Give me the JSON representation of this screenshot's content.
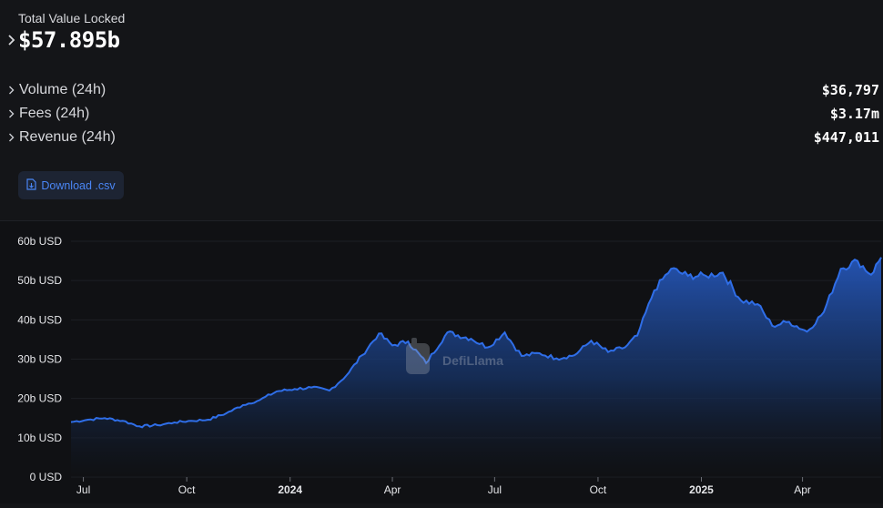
{
  "summary": {
    "tvl_label": "Total Value Locked",
    "tvl_value": "$57.895b",
    "metrics": [
      {
        "label": "Volume (24h)",
        "value": "$36,797"
      },
      {
        "label": "Fees (24h)",
        "value": "$3.17m"
      },
      {
        "label": "Revenue (24h)",
        "value": "$447,011"
      }
    ]
  },
  "download_button": {
    "label": "Download .csv",
    "icon": "file-download-icon"
  },
  "watermark": {
    "text": "DefiLlama",
    "icon": "llama-logo-icon"
  },
  "colors": {
    "line": "#2f6ee8",
    "accent": "#4a86f5"
  },
  "chart_data": {
    "type": "area",
    "title": "",
    "xlabel": "",
    "ylabel": "",
    "ylim": [
      0,
      60
    ],
    "y_ticks": [
      "0 USD",
      "10b USD",
      "20b USD",
      "30b USD",
      "40b USD",
      "50b USD",
      "60b USD"
    ],
    "x_ticks": [
      {
        "label": "Jul",
        "date": "2023-07-01",
        "bold": false
      },
      {
        "label": "Oct",
        "date": "2023-10-01",
        "bold": false
      },
      {
        "label": "2024",
        "date": "2024-01-01",
        "bold": true
      },
      {
        "label": "Apr",
        "date": "2024-04-01",
        "bold": false
      },
      {
        "label": "Jul",
        "date": "2024-07-01",
        "bold": false
      },
      {
        "label": "Oct",
        "date": "2024-10-01",
        "bold": false
      },
      {
        "label": "2025",
        "date": "2025-01-01",
        "bold": true
      },
      {
        "label": "Apr",
        "date": "2025-04-01",
        "bold": false
      }
    ],
    "x_range": [
      "2023-06-20",
      "2025-06-10"
    ],
    "grid": true,
    "legend": "none",
    "series": [
      {
        "values_unit": "billion USD",
        "points": [
          [
            "2023-06-20",
            14.0
          ],
          [
            "2023-07-05",
            14.6
          ],
          [
            "2023-07-20",
            15.0
          ],
          [
            "2023-08-05",
            14.3
          ],
          [
            "2023-08-20",
            12.9
          ],
          [
            "2023-09-05",
            13.2
          ],
          [
            "2023-09-20",
            13.9
          ],
          [
            "2023-10-05",
            14.3
          ],
          [
            "2023-10-20",
            14.6
          ],
          [
            "2023-11-05",
            16.2
          ],
          [
            "2023-11-20",
            18.3
          ],
          [
            "2023-12-05",
            19.6
          ],
          [
            "2023-12-20",
            21.8
          ],
          [
            "2024-01-05",
            22.4
          ],
          [
            "2024-01-20",
            22.8
          ],
          [
            "2024-02-05",
            22.0
          ],
          [
            "2024-02-20",
            25.8
          ],
          [
            "2024-03-05",
            31.0
          ],
          [
            "2024-03-20",
            36.5
          ],
          [
            "2024-04-01",
            33.5
          ],
          [
            "2024-04-15",
            34.5
          ],
          [
            "2024-05-01",
            29.0
          ],
          [
            "2024-05-20",
            36.8
          ],
          [
            "2024-06-10",
            35.2
          ],
          [
            "2024-06-25",
            33.0
          ],
          [
            "2024-07-10",
            36.8
          ],
          [
            "2024-07-25",
            30.8
          ],
          [
            "2024-08-10",
            31.5
          ],
          [
            "2024-08-25",
            30.2
          ],
          [
            "2024-09-10",
            31.0
          ],
          [
            "2024-09-25",
            34.7
          ],
          [
            "2024-10-10",
            31.8
          ],
          [
            "2024-10-25",
            33.0
          ],
          [
            "2024-11-05",
            36.0
          ],
          [
            "2024-11-20",
            47.5
          ],
          [
            "2024-12-05",
            53.0
          ],
          [
            "2024-12-20",
            51.2
          ],
          [
            "2025-01-05",
            51.2
          ],
          [
            "2025-01-20",
            52.0
          ],
          [
            "2025-02-05",
            45.0
          ],
          [
            "2025-02-20",
            44.0
          ],
          [
            "2025-03-05",
            38.5
          ],
          [
            "2025-03-20",
            39.5
          ],
          [
            "2025-04-05",
            37.0
          ],
          [
            "2025-04-20",
            42.0
          ],
          [
            "2025-05-05",
            53.0
          ],
          [
            "2025-05-20",
            55.0
          ],
          [
            "2025-06-01",
            51.5
          ],
          [
            "2025-06-10",
            55.9
          ]
        ]
      }
    ]
  }
}
